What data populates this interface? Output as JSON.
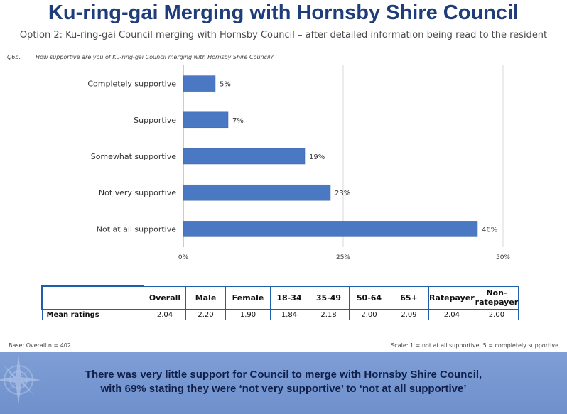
{
  "title": "Ku-ring-gai Merging with Hornsby Shire Council",
  "subtitle": "Option 2: Ku-ring-gai Council merging with Hornsby Council – after detailed information being read to the resident",
  "question": {
    "id": "Q6b.",
    "text": "How supportive are you of Ku-ring-gai Council merging with Hornsby Shire Council?"
  },
  "colors": {
    "bar": "#4a78c2",
    "title": "#1f3d7a",
    "banner": "#7396d2",
    "table_border": "#1f5fa8"
  },
  "chart_data": {
    "type": "bar",
    "orientation": "horizontal",
    "categories": [
      "Completely supportive",
      "Supportive",
      "Somewhat supportive",
      "Not very supportive",
      "Not at all supportive"
    ],
    "values": [
      5,
      7,
      19,
      23,
      46
    ],
    "value_labels": [
      "5%",
      "7%",
      "19%",
      "23%",
      "46%"
    ],
    "xlim": [
      0,
      50
    ],
    "x_ticks": [
      0,
      25,
      50
    ],
    "x_tick_labels": [
      "0%",
      "25%",
      "50%"
    ],
    "grid": "vertical",
    "legend": "none"
  },
  "table": {
    "headers": [
      "Overall",
      "Male",
      "Female",
      "18-34",
      "35-49",
      "50-64",
      "65+",
      "Ratepayer",
      "Non-ratepayer"
    ],
    "row_label": "Mean ratings",
    "values": [
      "2.04",
      "2.20",
      "1.90",
      "1.84",
      "2.18",
      "2.00",
      "2.09",
      "2.04",
      "2.00"
    ]
  },
  "footer": {
    "base": "Base: Overall n = 402",
    "scale": "Scale: 1 = not at all supportive, 5 = completely supportive"
  },
  "key_finding": {
    "line1": "There was very little support for Council to merge with Hornsby Shire Council,",
    "line2": "with 69% stating they were ‘not very supportive’ to ‘not at all supportive’"
  },
  "icons": [
    "compass-rose-icon"
  ]
}
